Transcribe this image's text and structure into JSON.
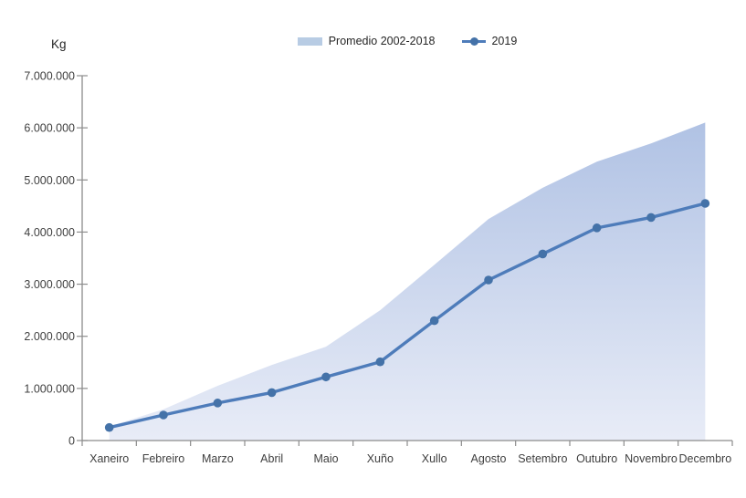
{
  "axis_title": "Kg",
  "legend": [
    {
      "label": "Promedio 2002-2018",
      "type": "area",
      "color": "#b8cce4"
    },
    {
      "label": "2019",
      "type": "line-marker",
      "color": "#4e7cba",
      "marker_color": "#4472a8"
    }
  ],
  "chart_data": {
    "type": "area",
    "title": "",
    "ylabel": "Kg",
    "xlabel": "",
    "grid": false,
    "legend_position": "top",
    "ylim": [
      0,
      7000000
    ],
    "ytick_step": 1000000,
    "y_tick_labels": [
      "0",
      "1.000.000",
      "2.000.000",
      "3.000.000",
      "4.000.000",
      "5.000.000",
      "6.000.000",
      "7.000.000"
    ],
    "categories": [
      "Xaneiro",
      "Febreiro",
      "Marzo",
      "Abril",
      "Maio",
      "Xuño",
      "Xullo",
      "Agosto",
      "Setembro",
      "Outubro",
      "Novembro",
      "Decembro"
    ],
    "series": [
      {
        "name": "Promedio 2002-2018",
        "type": "area",
        "fill_top": "#b0c2e4",
        "fill_bottom": "#e8ecf7",
        "values": [
          270000,
          600000,
          1050000,
          1450000,
          1800000,
          2500000,
          3370000,
          4250000,
          4850000,
          5350000,
          5700000,
          6100000
        ]
      },
      {
        "name": "2019",
        "type": "line",
        "color": "#4e7cba",
        "marker_color": "#4472a8",
        "values": [
          250000,
          490000,
          720000,
          920000,
          1220000,
          1510000,
          2300000,
          3080000,
          3580000,
          4080000,
          4280000,
          4550000
        ]
      }
    ],
    "axis_color": "#8c8c8c",
    "tick_label_color": "#404040"
  }
}
